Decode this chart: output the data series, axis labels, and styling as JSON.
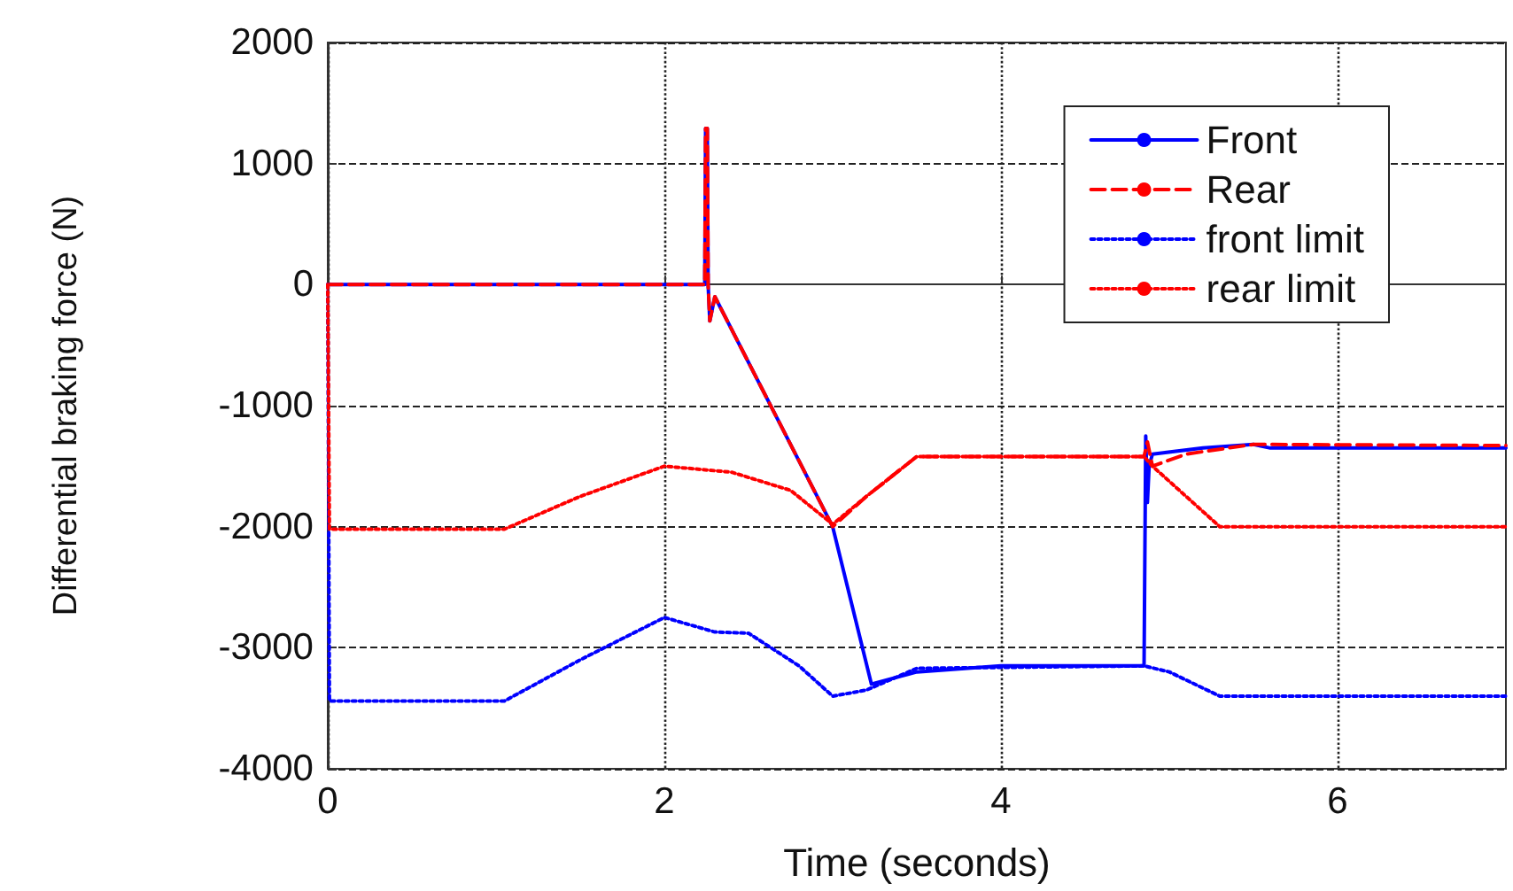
{
  "chart_data": {
    "type": "line",
    "xlabel": "Time (seconds)",
    "ylabel": "Differential braking force (N)",
    "xlim": [
      0,
      7
    ],
    "xticks": [
      0,
      2,
      4,
      6
    ],
    "ylim": [
      -4000,
      2000
    ],
    "yticks": [
      -4000,
      -3000,
      -2000,
      -1000,
      0,
      1000,
      2000
    ],
    "grid": true,
    "legend": "top right",
    "marker": "none",
    "series": [
      {
        "name": "Front",
        "color": "#0000ff",
        "line_style": "solid",
        "x": [
          0,
          2.24,
          2.245,
          2.255,
          2.26,
          2.27,
          2.3,
          3.0,
          3.23,
          3.5,
          4.0,
          4.85,
          4.86,
          4.87,
          4.88,
          4.9,
          5.2,
          5.5,
          5.6,
          7
        ],
        "values": [
          0,
          0,
          1290,
          1290,
          0,
          -300,
          -100,
          -2000,
          -3300,
          -3200,
          -3150,
          -3150,
          -1250,
          -1800,
          -1500,
          -1400,
          -1350,
          -1320,
          -1350,
          -1350
        ]
      },
      {
        "name": "Rear",
        "color": "#ff0000",
        "line_style": "dashed",
        "x": [
          0,
          2.24,
          2.245,
          2.255,
          2.26,
          2.27,
          2.3,
          3.0,
          3.2,
          3.5,
          4.85,
          4.87,
          4.9,
          5.1,
          5.5,
          7
        ],
        "values": [
          0,
          0,
          1290,
          1290,
          0,
          -300,
          -100,
          -2000,
          -1750,
          -1420,
          -1420,
          -1300,
          -1500,
          -1400,
          -1320,
          -1330
        ]
      },
      {
        "name": "front limit",
        "color": "#0000ff",
        "line_style": "dotted",
        "x": [
          0,
          0.01,
          1.05,
          1.5,
          2.0,
          2.3,
          2.5,
          2.8,
          3.0,
          3.2,
          3.5,
          4.85,
          5.0,
          5.3,
          7
        ],
        "values": [
          0,
          -3440,
          -3440,
          -3100,
          -2750,
          -2870,
          -2880,
          -3150,
          -3400,
          -3350,
          -3170,
          -3150,
          -3200,
          -3400,
          -3400
        ]
      },
      {
        "name": "rear limit",
        "color": "#ff0000",
        "line_style": "dotted",
        "x": [
          0,
          0.01,
          1.05,
          1.5,
          2.0,
          2.4,
          2.75,
          3.0,
          3.2,
          3.5,
          4.85,
          4.9,
          5.3,
          7
        ],
        "values": [
          0,
          -2020,
          -2020,
          -1750,
          -1500,
          -1550,
          -1700,
          -1980,
          -1750,
          -1420,
          -1420,
          -1500,
          -2000,
          -2000
        ]
      }
    ]
  }
}
